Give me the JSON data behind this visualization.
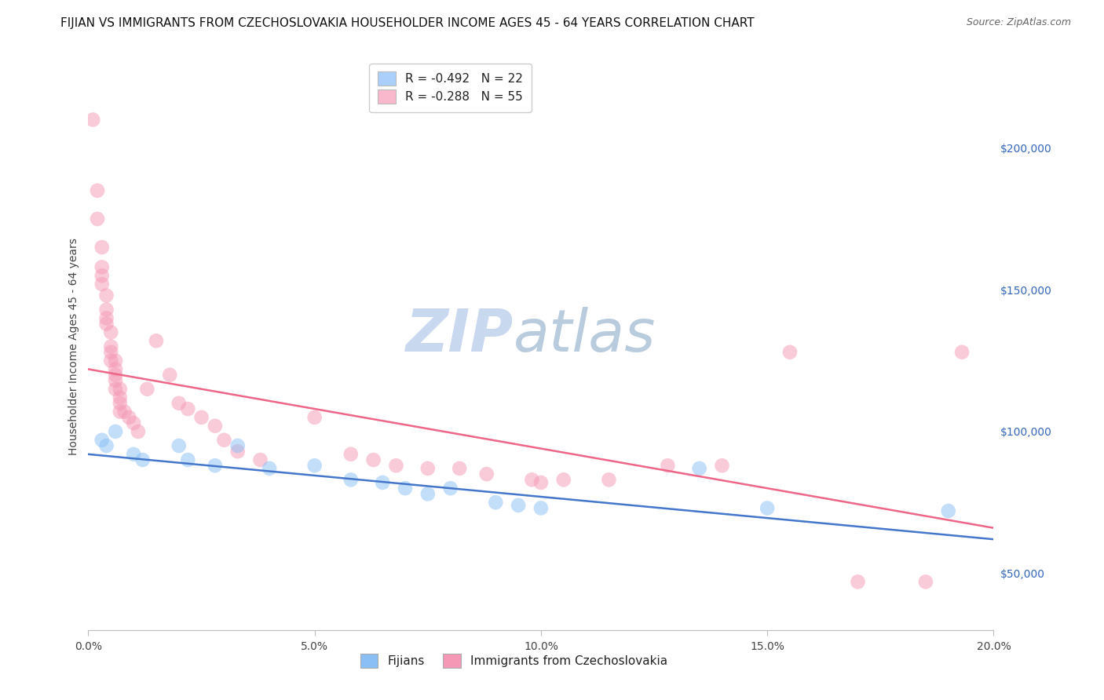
{
  "title": "FIJIAN VS IMMIGRANTS FROM CZECHOSLOVAKIA HOUSEHOLDER INCOME AGES 45 - 64 YEARS CORRELATION CHART",
  "source": "Source: ZipAtlas.com",
  "ylabel": "Householder Income Ages 45 - 64 years",
  "xlim": [
    0.0,
    0.2
  ],
  "ylim": [
    30000,
    230000
  ],
  "xticks": [
    0.0,
    0.05,
    0.1,
    0.15,
    0.2
  ],
  "xtick_labels": [
    "0.0%",
    "5.0%",
    "10.0%",
    "15.0%",
    "20.0%"
  ],
  "yticks": [
    50000,
    100000,
    150000,
    200000
  ],
  "ytick_labels": [
    "$50,000",
    "$100,000",
    "$150,000",
    "$200,000"
  ],
  "watermark_zip": "ZIP",
  "watermark_atlas": "atlas",
  "legend_entries": [
    {
      "label": "R = -0.492   N = 22",
      "color": "#aacffa"
    },
    {
      "label": "R = -0.288   N = 55",
      "color": "#f9b8cc"
    }
  ],
  "fijian_color": "#89bff5",
  "czech_color": "#f598b5",
  "fijian_line_color": "#4477cc",
  "czech_line_color": "#ee6688",
  "background_color": "#ffffff",
  "grid_color": "#cccccc",
  "fijian_points": [
    [
      0.003,
      97000
    ],
    [
      0.004,
      95000
    ],
    [
      0.006,
      100000
    ],
    [
      0.01,
      92000
    ],
    [
      0.012,
      90000
    ],
    [
      0.02,
      95000
    ],
    [
      0.022,
      90000
    ],
    [
      0.028,
      88000
    ],
    [
      0.033,
      95000
    ],
    [
      0.04,
      87000
    ],
    [
      0.05,
      88000
    ],
    [
      0.058,
      83000
    ],
    [
      0.065,
      82000
    ],
    [
      0.07,
      80000
    ],
    [
      0.075,
      78000
    ],
    [
      0.08,
      80000
    ],
    [
      0.09,
      75000
    ],
    [
      0.095,
      74000
    ],
    [
      0.1,
      73000
    ],
    [
      0.135,
      87000
    ],
    [
      0.15,
      73000
    ],
    [
      0.19,
      72000
    ]
  ],
  "czech_points": [
    [
      0.001,
      210000
    ],
    [
      0.002,
      185000
    ],
    [
      0.002,
      175000
    ],
    [
      0.003,
      165000
    ],
    [
      0.003,
      158000
    ],
    [
      0.003,
      155000
    ],
    [
      0.003,
      152000
    ],
    [
      0.004,
      148000
    ],
    [
      0.004,
      143000
    ],
    [
      0.004,
      140000
    ],
    [
      0.004,
      138000
    ],
    [
      0.005,
      135000
    ],
    [
      0.005,
      130000
    ],
    [
      0.005,
      128000
    ],
    [
      0.005,
      125000
    ],
    [
      0.006,
      125000
    ],
    [
      0.006,
      122000
    ],
    [
      0.006,
      120000
    ],
    [
      0.006,
      118000
    ],
    [
      0.006,
      115000
    ],
    [
      0.007,
      115000
    ],
    [
      0.007,
      112000
    ],
    [
      0.007,
      110000
    ],
    [
      0.007,
      107000
    ],
    [
      0.008,
      107000
    ],
    [
      0.009,
      105000
    ],
    [
      0.01,
      103000
    ],
    [
      0.011,
      100000
    ],
    [
      0.013,
      115000
    ],
    [
      0.015,
      132000
    ],
    [
      0.018,
      120000
    ],
    [
      0.02,
      110000
    ],
    [
      0.022,
      108000
    ],
    [
      0.025,
      105000
    ],
    [
      0.028,
      102000
    ],
    [
      0.03,
      97000
    ],
    [
      0.033,
      93000
    ],
    [
      0.038,
      90000
    ],
    [
      0.05,
      105000
    ],
    [
      0.058,
      92000
    ],
    [
      0.063,
      90000
    ],
    [
      0.068,
      88000
    ],
    [
      0.075,
      87000
    ],
    [
      0.082,
      87000
    ],
    [
      0.088,
      85000
    ],
    [
      0.098,
      83000
    ],
    [
      0.1,
      82000
    ],
    [
      0.105,
      83000
    ],
    [
      0.115,
      83000
    ],
    [
      0.128,
      88000
    ],
    [
      0.14,
      88000
    ],
    [
      0.155,
      128000
    ],
    [
      0.17,
      47000
    ],
    [
      0.185,
      47000
    ],
    [
      0.193,
      128000
    ]
  ],
  "title_fontsize": 11,
  "axis_label_fontsize": 10,
  "tick_fontsize": 10,
  "legend_fontsize": 11,
  "watermark_fontsize_zip": 54,
  "watermark_fontsize_atlas": 54,
  "watermark_color_zip": "#c5d8ef",
  "watermark_color_atlas": "#c5d8ef",
  "right_ytick_color": "#3366bb"
}
